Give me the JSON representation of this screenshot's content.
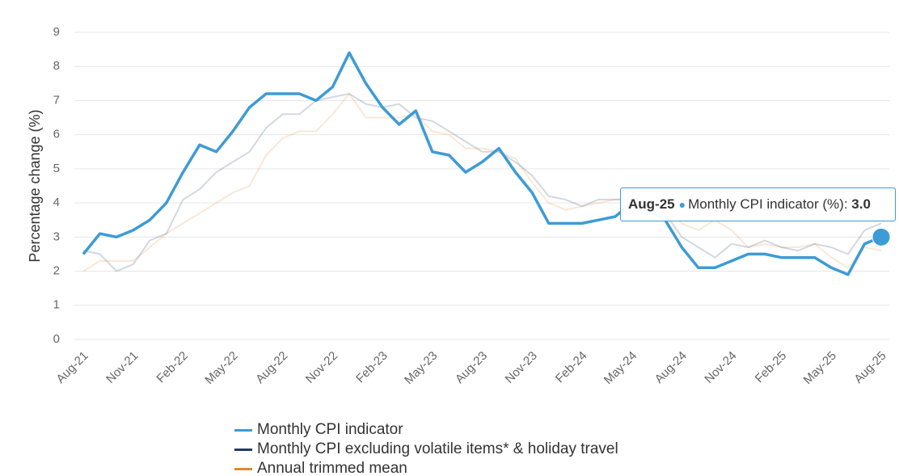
{
  "chart_data": {
    "type": "line",
    "y_label": "Percentage change (%)",
    "categories": [
      "Aug-21",
      null,
      null,
      "Nov-21",
      null,
      null,
      "Feb-22",
      null,
      null,
      "May-22",
      null,
      null,
      "Aug-22",
      null,
      null,
      "Nov-22",
      null,
      null,
      "Feb-23",
      null,
      null,
      "May-23",
      null,
      null,
      "Aug-23",
      null,
      null,
      "Nov-23",
      null,
      null,
      "Feb-24",
      null,
      null,
      "May-24",
      null,
      null,
      "Aug-24",
      null,
      null,
      "Nov-24",
      null,
      null,
      "Feb-25",
      null,
      null,
      "May-25",
      null,
      null,
      "Aug-25"
    ],
    "series": [
      {
        "name": "Monthly CPI indicator",
        "color": "#3d9bd6",
        "values": [
          2.5,
          3.1,
          3.0,
          3.2,
          3.5,
          4.0,
          4.9,
          5.7,
          5.5,
          6.1,
          6.8,
          7.2,
          7.2,
          7.2,
          7.0,
          7.4,
          8.4,
          7.5,
          6.8,
          6.3,
          6.7,
          5.5,
          5.4,
          4.9,
          5.2,
          5.6,
          4.9,
          4.3,
          3.4,
          3.4,
          3.4,
          3.5,
          3.6,
          4.0,
          3.8,
          3.5,
          2.7,
          2.1,
          2.1,
          2.3,
          2.5,
          2.5,
          2.4,
          2.4,
          2.4,
          2.1,
          1.9,
          2.8,
          3.0
        ]
      },
      {
        "name": "Monthly CPI excluding volatile items* & holiday travel",
        "color": "#1f3a6e",
        "values": [
          2.6,
          2.5,
          2.0,
          2.2,
          2.9,
          3.1,
          4.1,
          4.4,
          4.9,
          5.2,
          5.5,
          6.2,
          6.6,
          6.6,
          7.0,
          7.1,
          7.2,
          6.9,
          6.8,
          6.9,
          6.5,
          6.4,
          6.1,
          5.8,
          5.5,
          5.5,
          5.2,
          4.8,
          4.2,
          4.1,
          3.9,
          4.1,
          4.1,
          4.1,
          3.8,
          3.7,
          3.0,
          2.7,
          2.4,
          2.8,
          2.7,
          2.9,
          2.7,
          2.6,
          2.8,
          2.7,
          2.5,
          3.2,
          3.4
        ]
      },
      {
        "name": "Annual trimmed mean",
        "color": "#e08a2c",
        "values": [
          2.0,
          2.3,
          2.3,
          2.3,
          2.7,
          3.1,
          3.4,
          3.7,
          4.0,
          4.3,
          4.5,
          5.4,
          5.9,
          6.1,
          6.1,
          6.6,
          7.2,
          6.5,
          6.5,
          6.5,
          6.6,
          6.1,
          6.0,
          5.6,
          5.6,
          5.5,
          5.3,
          4.6,
          4.0,
          3.8,
          3.9,
          4.0,
          4.1,
          4.1,
          3.9,
          3.8,
          3.4,
          3.2,
          3.5,
          3.2,
          2.7,
          2.8,
          2.7,
          2.7,
          2.8,
          2.4,
          2.1,
          2.7,
          2.6
        ]
      }
    ],
    "ylim": [
      0,
      9
    ],
    "yticks": [
      0,
      1,
      2,
      3,
      4,
      5,
      6,
      7,
      8,
      9
    ],
    "grid": true,
    "tooltip": {
      "category": "Aug-25",
      "label": "Monthly CPI indicator (%):",
      "value": 3,
      "value_label": "3.0"
    }
  }
}
